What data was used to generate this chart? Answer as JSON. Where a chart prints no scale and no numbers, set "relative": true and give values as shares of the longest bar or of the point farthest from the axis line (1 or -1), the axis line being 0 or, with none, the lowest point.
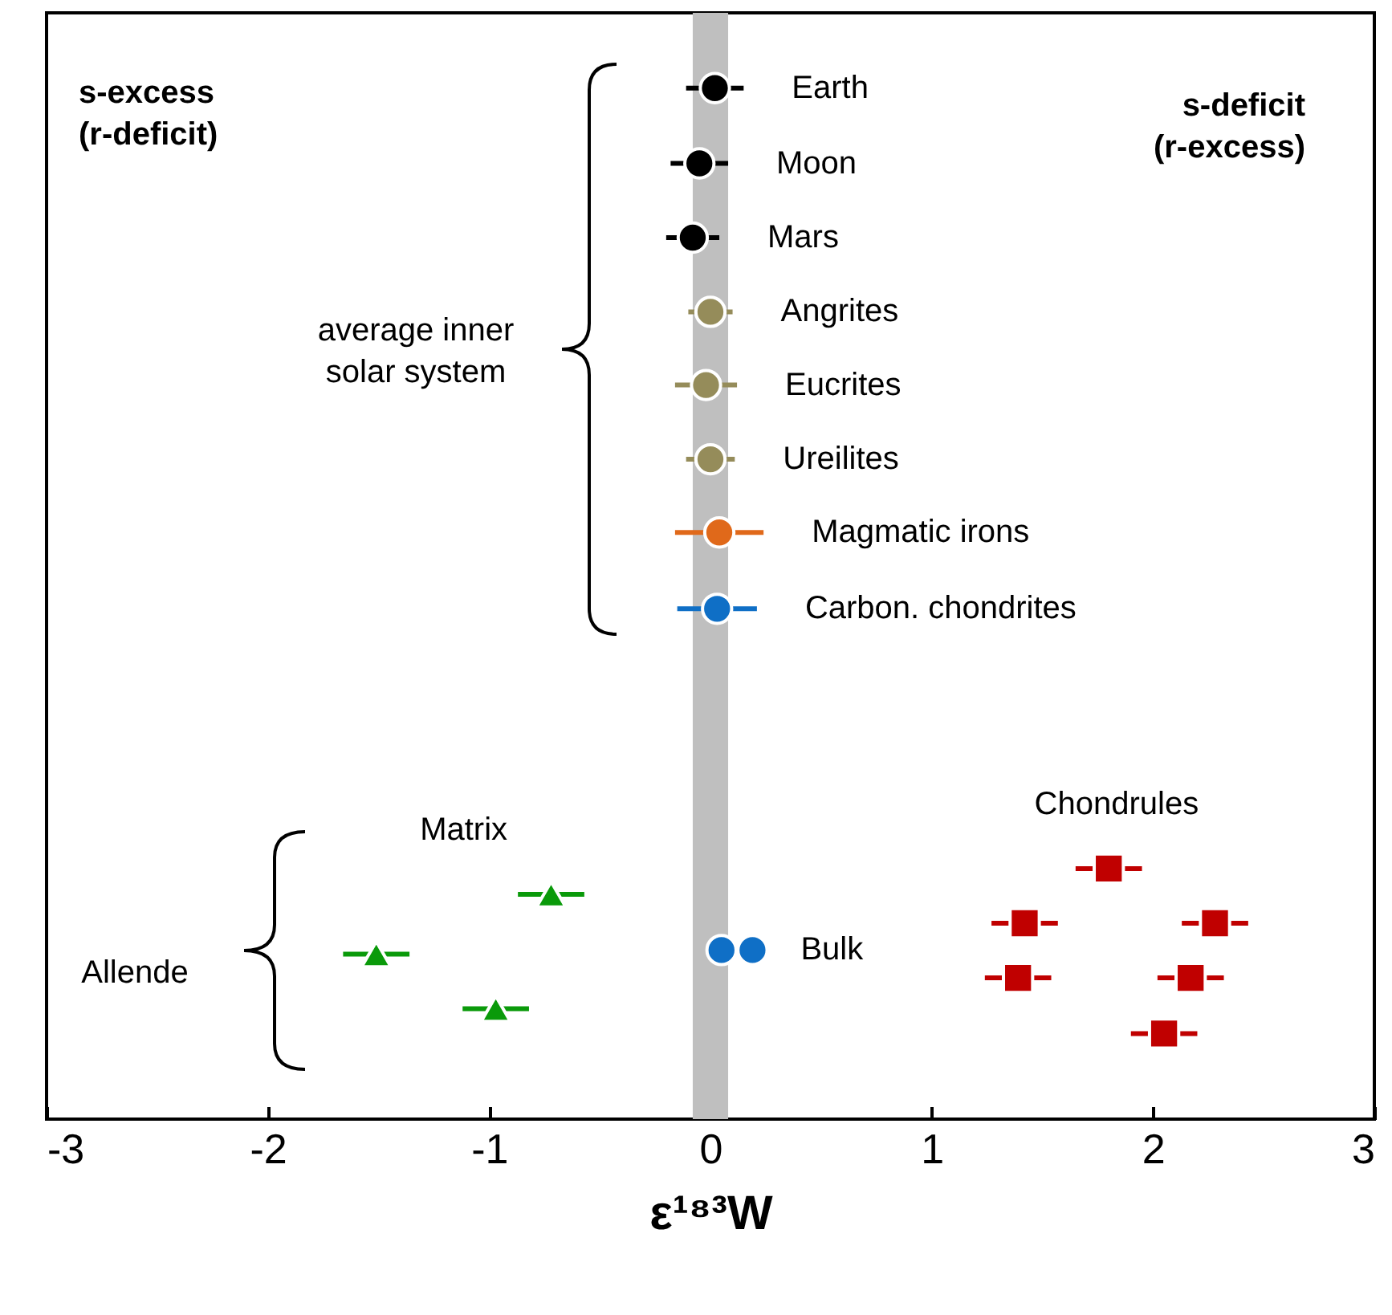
{
  "chart_data": {
    "type": "scatter",
    "relative": true,
    "xlabel": "ε¹⁸³W",
    "xlim": [
      -3,
      3
    ],
    "xticks": [
      -3,
      -2,
      -1,
      0,
      1,
      2,
      3
    ],
    "bands": [
      {
        "axis": "x",
        "from": -0.08,
        "to": 0.08,
        "color": "#bfbfbf"
      }
    ],
    "annotations": [
      "s-excess\n(r-deficit)",
      "s-deficit\n(r-excess)",
      "average inner\nsolar system",
      "Allende"
    ],
    "series": [
      {
        "name": "Earth",
        "color": "#000000",
        "marker": "circle",
        "x": [
          0.02
        ],
        "values": [
          1
        ],
        "xerrors": [
          0.13
        ]
      },
      {
        "name": "Moon",
        "color": "#000000",
        "marker": "circle",
        "x": [
          -0.05
        ],
        "values": [
          0.927
        ],
        "xerrors": [
          0.13
        ]
      },
      {
        "name": "Mars",
        "color": "#000000",
        "marker": "circle",
        "x": [
          -0.08
        ],
        "values": [
          0.855
        ],
        "xerrors": [
          0.12
        ]
      },
      {
        "name": "Angrites",
        "color": "#958c5a",
        "marker": "circle",
        "x": [
          0.0
        ],
        "values": [
          0.783
        ],
        "xerrors": [
          0.1
        ]
      },
      {
        "name": "Eucrites",
        "color": "#958c5a",
        "marker": "circle",
        "x": [
          -0.02
        ],
        "values": [
          0.712
        ],
        "xerrors": [
          0.14
        ]
      },
      {
        "name": "Ureilites",
        "color": "#958c5a",
        "marker": "circle",
        "x": [
          0.0
        ],
        "values": [
          0.64
        ],
        "xerrors": [
          0.11
        ]
      },
      {
        "name": "Magmatic irons",
        "color": "#e0691a",
        "marker": "circle",
        "x": [
          0.04
        ],
        "values": [
          0.569
        ],
        "xerrors": [
          0.2
        ]
      },
      {
        "name": "Carbon. chondrites",
        "color": "#0f6fc6",
        "marker": "circle",
        "x": [
          0.03
        ],
        "values": [
          0.495
        ],
        "xerrors": [
          0.18
        ]
      },
      {
        "name": "Matrix",
        "color": "#0a9a0a",
        "marker": "triangle",
        "x": [
          -0.72,
          -1.51,
          -0.97
        ],
        "values": [
          0.218,
          0.16,
          0.107
        ],
        "xerrors": [
          0.15,
          0.15,
          0.15
        ]
      },
      {
        "name": "Bulk",
        "color": "#0f6fc6",
        "marker": "circle",
        "x": [
          0.05,
          0.19
        ],
        "values": [
          0.164,
          0.164
        ]
      },
      {
        "name": "Chondrules",
        "color": "#c00000",
        "marker": "square",
        "x": [
          1.8,
          1.42,
          2.28,
          1.39,
          2.17,
          2.05
        ],
        "values": [
          0.243,
          0.19,
          0.19,
          0.137,
          0.137,
          0.083
        ],
        "xerrors": [
          0.15,
          0.15,
          0.15,
          0.15,
          0.15,
          0.15
        ]
      }
    ]
  }
}
